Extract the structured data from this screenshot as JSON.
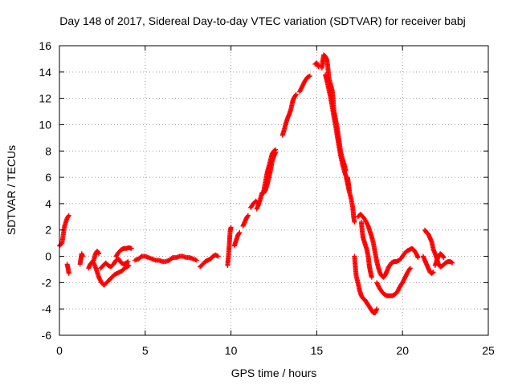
{
  "chart_data": {
    "type": "scatter",
    "title": "Day 148 of 2017, Sidereal Day-to-day VTEC variation (SDTVAR) for receiver babj",
    "xlabel": "GPS time / hours",
    "ylabel": "SDTVAR / TECUs",
    "xlim": [
      0,
      25
    ],
    "ylim": [
      -6,
      16
    ],
    "xticks": [
      "0",
      "5",
      "10",
      "15",
      "20",
      "25"
    ],
    "yticks": [
      "-6",
      "-4",
      "-2",
      "0",
      "2",
      "4",
      "6",
      "8",
      "10",
      "12",
      "14",
      "16"
    ],
    "grid": true,
    "marker": "plus",
    "series_color": "#ff0000",
    "series": [
      {
        "name": "SDTVAR",
        "segments": [
          [
            [
              0.0,
              0.8
            ],
            [
              0.15,
              1.0
            ],
            [
              0.3,
              2.3
            ],
            [
              0.45,
              2.9
            ],
            [
              0.55,
              3.1
            ]
          ],
          [
            [
              0.45,
              -0.6
            ],
            [
              0.5,
              -0.9
            ],
            [
              0.55,
              -1.3
            ]
          ],
          [
            [
              1.2,
              -0.6
            ],
            [
              1.25,
              -0.2
            ],
            [
              1.3,
              0.2
            ],
            [
              1.35,
              0.0
            ]
          ],
          [
            [
              1.7,
              -0.9
            ],
            [
              1.8,
              -0.6
            ],
            [
              2.0,
              -0.3
            ],
            [
              2.1,
              0.2
            ],
            [
              2.2,
              0.4
            ],
            [
              2.3,
              0.2
            ]
          ],
          [
            [
              2.0,
              -0.5
            ],
            [
              2.15,
              -1.0
            ],
            [
              2.3,
              -1.6
            ],
            [
              2.45,
              -2.0
            ],
            [
              2.6,
              -2.2
            ],
            [
              2.75,
              -2.0
            ],
            [
              2.9,
              -1.8
            ],
            [
              3.05,
              -1.6
            ],
            [
              3.2,
              -1.4
            ],
            [
              3.35,
              -1.3
            ],
            [
              3.5,
              -1.2
            ],
            [
              3.65,
              -1.1
            ],
            [
              3.8,
              -0.9
            ],
            [
              3.95,
              -0.8
            ],
            [
              4.05,
              -0.7
            ]
          ],
          [
            [
              2.4,
              -0.9
            ],
            [
              2.55,
              -0.7
            ],
            [
              2.7,
              -0.5
            ],
            [
              2.85,
              -0.7
            ],
            [
              3.0,
              -0.8
            ],
            [
              3.15,
              -0.6
            ],
            [
              3.3,
              -0.3
            ],
            [
              3.45,
              -0.2
            ],
            [
              3.6,
              -0.5
            ],
            [
              3.75,
              -0.6
            ],
            [
              3.9,
              -0.5
            ],
            [
              4.0,
              -0.4
            ]
          ],
          [
            [
              3.3,
              0.0
            ],
            [
              3.45,
              0.3
            ],
            [
              3.6,
              0.5
            ],
            [
              3.75,
              0.6
            ],
            [
              3.9,
              0.6
            ],
            [
              4.05,
              0.65
            ],
            [
              4.2,
              0.6
            ]
          ],
          [
            [
              4.4,
              -0.3
            ],
            [
              4.6,
              -0.2
            ],
            [
              4.8,
              0.0
            ],
            [
              5.0,
              0.0
            ],
            [
              5.2,
              -0.1
            ],
            [
              5.4,
              -0.2
            ],
            [
              5.6,
              -0.3
            ],
            [
              5.8,
              -0.3
            ],
            [
              6.0,
              -0.4
            ],
            [
              6.2,
              -0.4
            ],
            [
              6.4,
              -0.3
            ],
            [
              6.6,
              -0.1
            ],
            [
              6.8,
              -0.1
            ],
            [
              7.0,
              0.0
            ],
            [
              7.2,
              0.0
            ],
            [
              7.4,
              -0.1
            ],
            [
              7.6,
              -0.1
            ],
            [
              7.8,
              -0.2
            ],
            [
              8.0,
              -0.3
            ]
          ],
          [
            [
              8.2,
              -0.8
            ],
            [
              8.35,
              -0.6
            ],
            [
              8.5,
              -0.4
            ],
            [
              8.65,
              -0.3
            ],
            [
              8.8,
              -0.2
            ],
            [
              8.95,
              0.0
            ],
            [
              9.1,
              0.1
            ],
            [
              9.25,
              0.0
            ]
          ],
          [
            [
              9.8,
              -0.7
            ],
            [
              9.85,
              0.0
            ],
            [
              9.9,
              0.9
            ],
            [
              9.95,
              1.9
            ],
            [
              10.0,
              2.2
            ]
          ],
          [
            [
              10.2,
              0.8
            ],
            [
              10.3,
              1.2
            ],
            [
              10.4,
              1.6
            ],
            [
              10.5,
              1.8
            ]
          ],
          [
            [
              10.7,
              2.3
            ],
            [
              10.8,
              2.6
            ],
            [
              10.9,
              2.9
            ],
            [
              11.0,
              3.1
            ]
          ],
          [
            [
              11.15,
              3.7
            ],
            [
              11.3,
              4.0
            ],
            [
              11.45,
              4.2
            ],
            [
              11.6,
              4.0
            ]
          ],
          [
            [
              11.5,
              3.6
            ],
            [
              11.6,
              3.9
            ],
            [
              11.7,
              4.3
            ],
            [
              11.8,
              4.8
            ],
            [
              11.9,
              4.9
            ],
            [
              12.0,
              5.6
            ],
            [
              12.1,
              6.3
            ],
            [
              12.2,
              6.8
            ],
            [
              12.3,
              7.3
            ],
            [
              12.4,
              7.8
            ],
            [
              12.5,
              8.0
            ],
            [
              12.6,
              8.1
            ]
          ],
          [
            [
              11.9,
              4.8
            ],
            [
              12.0,
              5.0
            ],
            [
              12.1,
              5.4
            ],
            [
              12.2,
              5.9
            ],
            [
              12.3,
              6.5
            ],
            [
              12.4,
              7.2
            ],
            [
              12.5,
              7.6
            ],
            [
              12.6,
              7.9
            ]
          ],
          [
            [
              13.0,
              9.2
            ],
            [
              13.1,
              9.6
            ],
            [
              13.2,
              10.1
            ],
            [
              13.3,
              10.5
            ],
            [
              13.4,
              10.8
            ],
            [
              13.5,
              11.2
            ],
            [
              13.6,
              11.8
            ],
            [
              13.7,
              12.1
            ],
            [
              13.8,
              12.3
            ]
          ],
          [
            [
              14.0,
              12.5
            ],
            [
              14.15,
              12.9
            ],
            [
              14.3,
              13.3
            ],
            [
              14.45,
              13.6
            ],
            [
              14.6,
              13.7
            ]
          ],
          [
            [
              14.9,
              14.6
            ],
            [
              15.0,
              14.7
            ],
            [
              15.1,
              14.4
            ]
          ],
          [
            [
              15.3,
              14.3
            ],
            [
              15.35,
              14.8
            ],
            [
              15.4,
              15.3
            ],
            [
              15.5,
              15.2
            ],
            [
              15.6,
              14.9
            ],
            [
              15.65,
              14.3
            ],
            [
              15.7,
              13.6
            ],
            [
              15.8,
              13.1
            ],
            [
              15.9,
              12.6
            ],
            [
              15.95,
              12.0
            ],
            [
              16.0,
              11.1
            ],
            [
              16.1,
              10.4
            ],
            [
              16.2,
              9.7
            ],
            [
              16.3,
              8.8
            ],
            [
              16.4,
              7.9
            ],
            [
              16.5,
              7.4
            ],
            [
              16.6,
              7.0
            ],
            [
              16.7,
              6.5
            ]
          ],
          [
            [
              15.5,
              13.8
            ],
            [
              15.6,
              13.3
            ],
            [
              15.7,
              12.7
            ],
            [
              15.8,
              12.1
            ],
            [
              15.9,
              11.4
            ],
            [
              16.0,
              10.6
            ],
            [
              16.1,
              9.9
            ],
            [
              16.2,
              9.1
            ],
            [
              16.3,
              8.3
            ],
            [
              16.4,
              7.6
            ],
            [
              16.5,
              7.0
            ],
            [
              16.6,
              6.5
            ],
            [
              16.7,
              6.1
            ],
            [
              16.8,
              5.5
            ],
            [
              16.9,
              4.9
            ],
            [
              17.0,
              4.4
            ],
            [
              17.1,
              3.7
            ],
            [
              17.15,
              3.0
            ],
            [
              17.2,
              2.6
            ]
          ],
          [
            [
              16.8,
              6.0
            ],
            [
              16.85,
              5.5
            ],
            [
              16.9,
              5.0
            ]
          ],
          [
            [
              17.4,
              3.0
            ],
            [
              17.55,
              3.2
            ],
            [
              17.7,
              3.0
            ],
            [
              17.85,
              2.7
            ],
            [
              18.0,
              2.3
            ],
            [
              18.1,
              1.9
            ],
            [
              18.2,
              1.5
            ],
            [
              18.3,
              1.0
            ],
            [
              18.4,
              0.3
            ],
            [
              18.5,
              -0.4
            ],
            [
              18.6,
              -0.9
            ],
            [
              18.7,
              -1.3
            ],
            [
              18.8,
              -1.5
            ],
            [
              18.9,
              -1.6
            ],
            [
              19.0,
              -1.4
            ],
            [
              19.1,
              -1.1
            ],
            [
              19.2,
              -0.8
            ],
            [
              19.35,
              -0.5
            ],
            [
              19.5,
              -0.4
            ],
            [
              19.65,
              -0.4
            ],
            [
              19.8,
              -0.3
            ],
            [
              19.95,
              -0.1
            ],
            [
              20.1,
              0.2
            ],
            [
              20.25,
              0.4
            ],
            [
              20.4,
              0.5
            ],
            [
              20.55,
              0.6
            ],
            [
              20.65,
              0.5
            ],
            [
              20.8,
              0.2
            ],
            [
              20.9,
              -0.1
            ]
          ],
          [
            [
              17.6,
              2.6
            ],
            [
              17.65,
              1.9
            ],
            [
              17.7,
              1.4
            ],
            [
              17.8,
              1.0
            ],
            [
              17.9,
              0.6
            ],
            [
              18.0,
              0.0
            ],
            [
              18.05,
              -0.6
            ],
            [
              18.1,
              -1.0
            ],
            [
              18.15,
              -1.3
            ],
            [
              18.2,
              -1.6
            ]
          ],
          [
            [
              17.2,
              0.0
            ],
            [
              17.25,
              -0.8
            ],
            [
              17.3,
              -1.5
            ],
            [
              17.4,
              -2.0
            ],
            [
              17.5,
              -2.6
            ],
            [
              17.6,
              -3.0
            ],
            [
              17.7,
              -3.2
            ],
            [
              17.8,
              -3.3
            ],
            [
              17.9,
              -3.5
            ],
            [
              18.0,
              -3.7
            ],
            [
              18.1,
              -3.9
            ],
            [
              18.2,
              -4.1
            ],
            [
              18.3,
              -4.3
            ],
            [
              18.4,
              -4.3
            ],
            [
              18.5,
              -4.0
            ]
          ],
          [
            [
              18.5,
              -2.0
            ],
            [
              18.65,
              -2.4
            ],
            [
              18.8,
              -2.7
            ],
            [
              18.95,
              -2.9
            ],
            [
              19.1,
              -3.0
            ],
            [
              19.25,
              -3.0
            ],
            [
              19.4,
              -3.0
            ],
            [
              19.55,
              -2.9
            ],
            [
              19.7,
              -2.7
            ],
            [
              19.85,
              -2.3
            ],
            [
              20.0,
              -2.0
            ],
            [
              20.15,
              -1.6
            ],
            [
              20.3,
              -1.2
            ],
            [
              20.45,
              -0.9
            ]
          ],
          [
            [
              21.3,
              2.0
            ],
            [
              21.4,
              1.8
            ],
            [
              21.5,
              1.7
            ],
            [
              21.6,
              1.4
            ],
            [
              21.7,
              1.1
            ],
            [
              21.8,
              0.5
            ],
            [
              21.9,
              0.2
            ],
            [
              22.0,
              -0.2
            ],
            [
              22.1,
              -0.6
            ],
            [
              22.2,
              -0.8
            ],
            [
              22.35,
              -0.7
            ],
            [
              22.5,
              -0.5
            ],
            [
              22.65,
              -0.4
            ],
            [
              22.8,
              -0.4
            ],
            [
              22.9,
              -0.5
            ]
          ],
          [
            [
              21.2,
              0.0
            ],
            [
              21.3,
              -0.3
            ],
            [
              21.4,
              -0.6
            ],
            [
              21.5,
              -0.9
            ],
            [
              21.6,
              -1.2
            ],
            [
              21.7,
              -1.3
            ],
            [
              21.8,
              -1.2
            ]
          ],
          [
            [
              21.9,
              -0.7
            ],
            [
              22.0,
              -0.3
            ],
            [
              22.1,
              0.0
            ],
            [
              22.2,
              0.2
            ],
            [
              22.3,
              0.1
            ],
            [
              22.4,
              -0.1
            ]
          ]
        ]
      }
    ]
  }
}
